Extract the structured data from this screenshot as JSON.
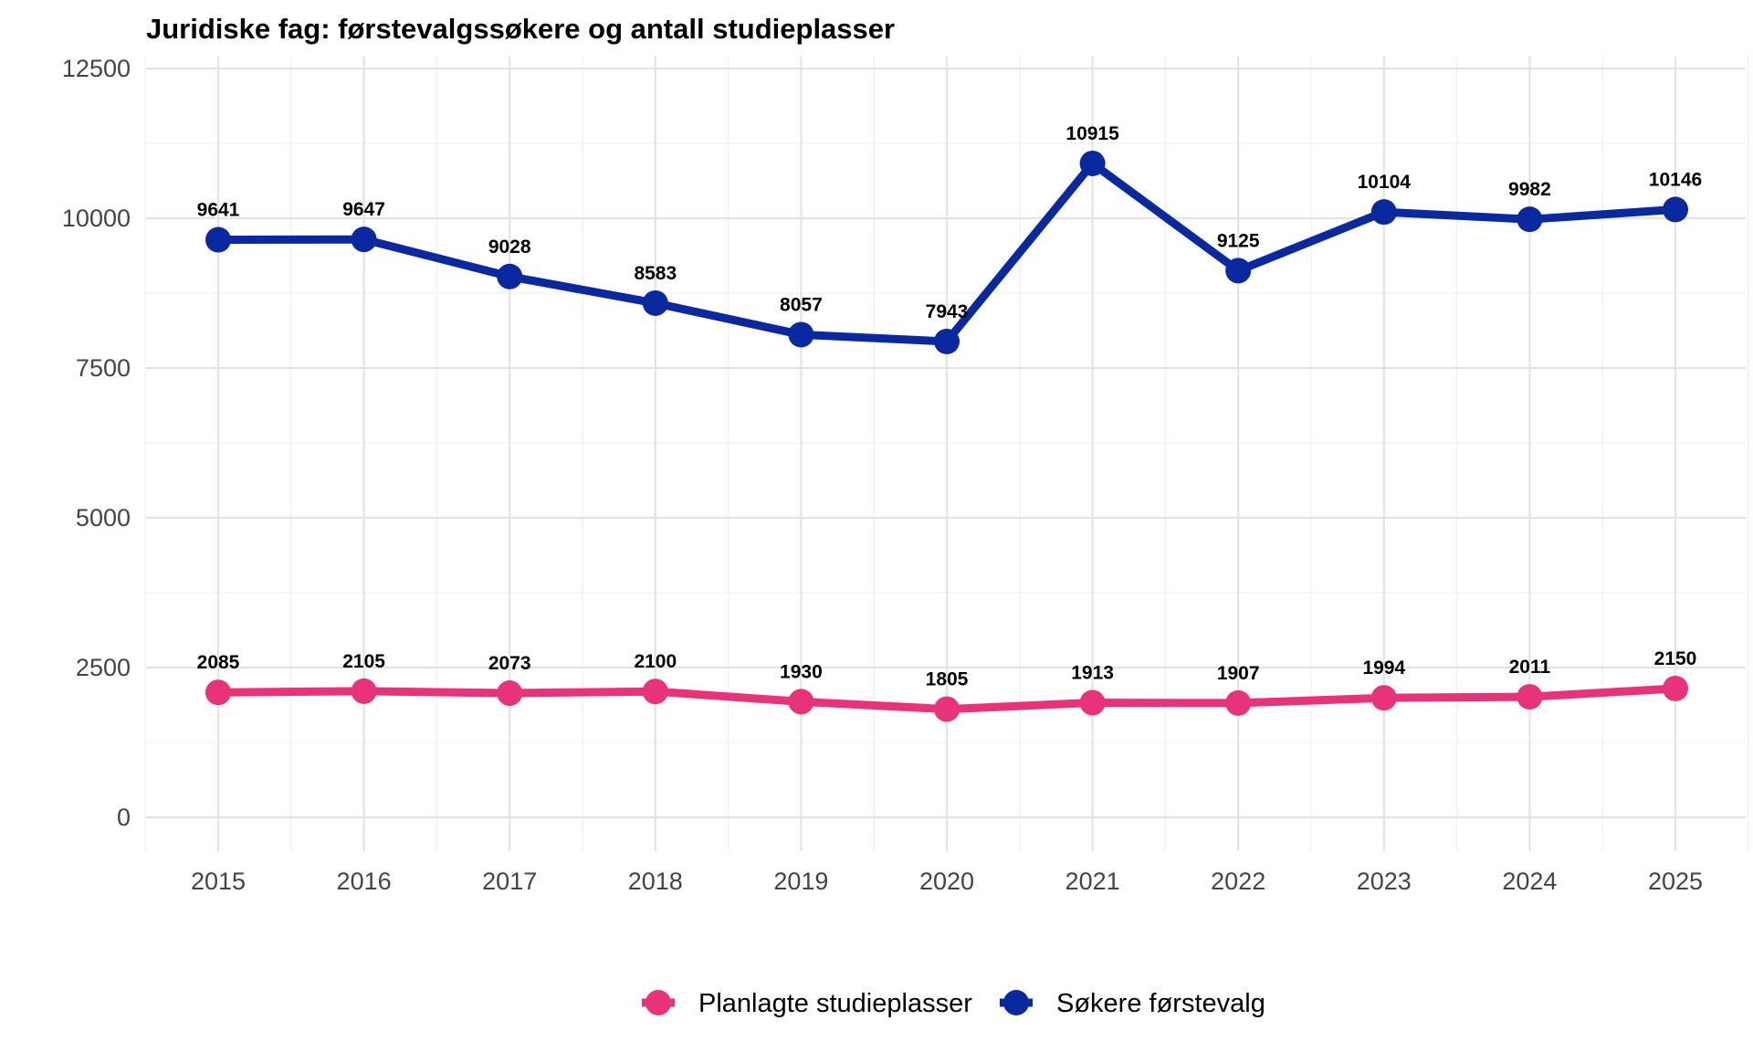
{
  "chart_data": {
    "type": "line",
    "title": "Juridiske fag: førstevalgssøkere og antall studieplasser",
    "xlabel": "",
    "ylabel": "",
    "x": [
      "2015",
      "2016",
      "2017",
      "2018",
      "2019",
      "2020",
      "2021",
      "2022",
      "2023",
      "2024",
      "2025"
    ],
    "ylim": [
      0,
      12500
    ],
    "y_ticks": [
      "0",
      "2500",
      "5000",
      "7500",
      "10000",
      "12500"
    ],
    "grid": true,
    "legend_position": "bottom",
    "series": [
      {
        "name": "Planlagte studieplasser",
        "color": "#e8327a",
        "values": [
          2085,
          2105,
          2073,
          2100,
          1930,
          1805,
          1913,
          1907,
          1994,
          2011,
          2150
        ]
      },
      {
        "name": "Søkere førstevalg",
        "color": "#0a28a0",
        "values": [
          9641,
          9647,
          9028,
          8583,
          8057,
          7943,
          10915,
          9125,
          10104,
          9982,
          10146
        ]
      }
    ]
  }
}
